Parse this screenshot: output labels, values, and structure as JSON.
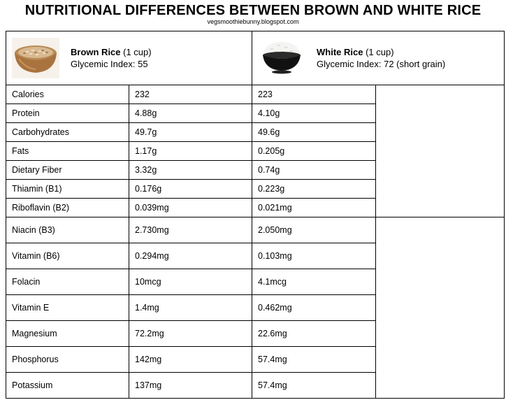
{
  "title": "NUTRITIONAL DIFFERENCES BETWEEN BROWN AND WHITE RICE",
  "subtitle": "vegsmoothiebunny.blogspot.com",
  "brown": {
    "name": "Brown Rice",
    "serving": " (1 cup)",
    "gi": "Glycemic Index: 55"
  },
  "white": {
    "name": "White Rice",
    "serving": " (1 cup)",
    "gi": " Glycemic Index: 72 (short grain)"
  },
  "rows": [
    {
      "label": "Calories",
      "brown": "232",
      "white": "223"
    },
    {
      "label": "Protein",
      "brown": "4.88g",
      "white": "4.10g"
    },
    {
      "label": "Carbohydrates",
      "brown": "49.7g",
      "white": "49.6g"
    },
    {
      "label": "Fats",
      "brown": "1.17g",
      "white": "0.205g"
    },
    {
      "label": "Dietary Fiber",
      "brown": "3.32g",
      "white": "0.74g"
    },
    {
      "label": "Thiamin (B1)",
      "brown": "0.176g",
      "white": "0.223g"
    },
    {
      "label": "Riboflavin (B2)",
      "brown": "0.039mg",
      "white": "0.021mg"
    },
    {
      "label": "Niacin (B3)",
      "brown": "2.730mg",
      "white": "2.050mg"
    },
    {
      "label": "Vitamin (B6)",
      "brown": "0.294mg",
      "white": "0.103mg"
    },
    {
      "label": "Folacin",
      "brown": "10mcg",
      "white": "4.1mcg"
    },
    {
      "label": "Vitamin E",
      "brown": "1.4mg",
      "white": "0.462mg"
    },
    {
      "label": "Magnesium",
      "brown": "72.2mg",
      "white": "22.6mg"
    },
    {
      "label": "Phosphorus",
      "brown": "142mg",
      "white": "57.4mg"
    },
    {
      "label": "Potassium",
      "brown": "137mg",
      "white": "57.4mg"
    }
  ]
}
